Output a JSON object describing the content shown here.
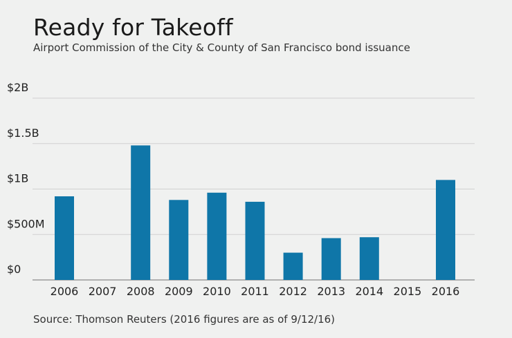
{
  "chart_data": {
    "type": "bar",
    "title": "Ready for Takeoff",
    "subtitle": "Airport Commission of the City & County of San Francisco bond issuance",
    "source": "Source: Thomson Reuters (2016 figures are as of 9/12/16)",
    "categories": [
      "2006",
      "2007",
      "2008",
      "2009",
      "2010",
      "2011",
      "2012",
      "2013",
      "2014",
      "2015",
      "2016"
    ],
    "values": [
      0.92,
      0,
      1.48,
      0.88,
      0.96,
      0.86,
      0.3,
      0.46,
      0.47,
      0,
      1.1
    ],
    "value_unit": "billions of dollars",
    "ylim": [
      0,
      2
    ],
    "yticks": [
      {
        "value": 0,
        "label": "$0"
      },
      {
        "value": 0.5,
        "label": "$500M"
      },
      {
        "value": 1,
        "label": "$1B"
      },
      {
        "value": 1.5,
        "label": "$1.5B"
      },
      {
        "value": 2,
        "label": "$2B"
      }
    ],
    "xlabel": "",
    "ylabel": "",
    "grid": true,
    "bar_color": "#0f76a8"
  }
}
